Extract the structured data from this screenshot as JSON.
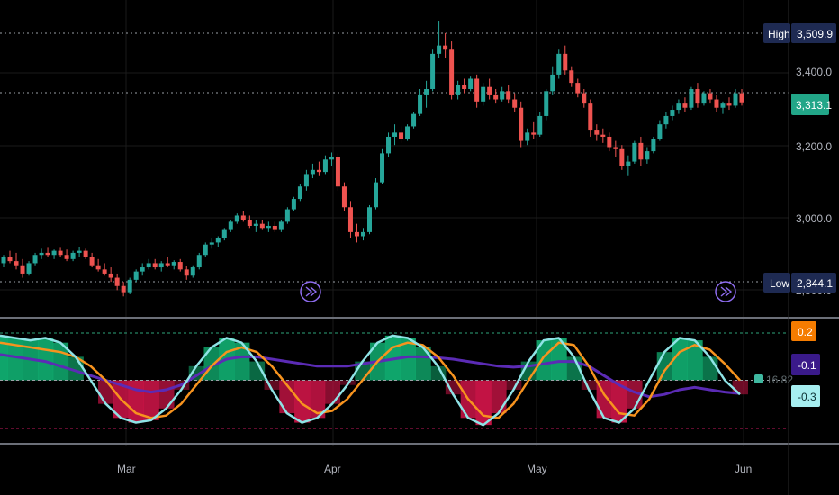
{
  "chart_data": {
    "type": "candlestick",
    "price_axis": {
      "ticks": [
        "3,400.0",
        "3,200.0",
        "3,000.0",
        "2,800.0"
      ],
      "tick_values": [
        3400,
        3200,
        3000,
        2800
      ],
      "ylim": [
        2800,
        3560
      ],
      "high_label": "High",
      "high_value": "3,509.9",
      "low_label": "Low",
      "low_value": "2,844.1",
      "last_value": "3,313.1"
    },
    "time_axis": {
      "labels": [
        "Mar",
        "Apr",
        "May",
        "Jun"
      ]
    },
    "candles": [
      [
        2925,
        2945,
        2915,
        2940
      ],
      [
        2940,
        2955,
        2925,
        2930
      ],
      [
        2930,
        2950,
        2910,
        2920
      ],
      [
        2920,
        2935,
        2890,
        2900
      ],
      [
        2900,
        2930,
        2895,
        2925
      ],
      [
        2925,
        2950,
        2920,
        2945
      ],
      [
        2945,
        2960,
        2935,
        2950
      ],
      [
        2950,
        2962,
        2940,
        2945
      ],
      [
        2945,
        2958,
        2935,
        2955
      ],
      [
        2955,
        2962,
        2940,
        2945
      ],
      [
        2945,
        2958,
        2930,
        2935
      ],
      [
        2935,
        2955,
        2930,
        2950
      ],
      [
        2950,
        2965,
        2940,
        2955
      ],
      [
        2955,
        2960,
        2935,
        2940
      ],
      [
        2940,
        2950,
        2915,
        2920
      ],
      [
        2920,
        2935,
        2905,
        2910
      ],
      [
        2910,
        2925,
        2895,
        2900
      ],
      [
        2900,
        2915,
        2880,
        2890
      ],
      [
        2890,
        2900,
        2860,
        2870
      ],
      [
        2870,
        2880,
        2845,
        2855
      ],
      [
        2855,
        2890,
        2850,
        2885
      ],
      [
        2885,
        2910,
        2880,
        2905
      ],
      [
        2905,
        2925,
        2895,
        2915
      ],
      [
        2915,
        2935,
        2910,
        2925
      ],
      [
        2925,
        2935,
        2910,
        2915
      ],
      [
        2915,
        2930,
        2905,
        2925
      ],
      [
        2925,
        2940,
        2915,
        2920
      ],
      [
        2920,
        2932,
        2910,
        2928
      ],
      [
        2928,
        2935,
        2905,
        2910
      ],
      [
        2910,
        2918,
        2885,
        2895
      ],
      [
        2895,
        2920,
        2890,
        2915
      ],
      [
        2915,
        2950,
        2910,
        2945
      ],
      [
        2945,
        2975,
        2940,
        2970
      ],
      [
        2970,
        2985,
        2960,
        2975
      ],
      [
        2975,
        2990,
        2965,
        2985
      ],
      [
        2985,
        3010,
        2980,
        3005
      ],
      [
        3005,
        3030,
        3000,
        3025
      ],
      [
        3025,
        3045,
        3020,
        3040
      ],
      [
        3040,
        3050,
        3025,
        3030
      ],
      [
        3030,
        3040,
        3010,
        3015
      ],
      [
        3015,
        3030,
        3000,
        3020
      ],
      [
        3020,
        3030,
        3005,
        3010
      ],
      [
        3010,
        3025,
        3000,
        3015
      ],
      [
        3015,
        3025,
        3000,
        3005
      ],
      [
        3005,
        3030,
        3000,
        3025
      ],
      [
        3025,
        3060,
        3020,
        3055
      ],
      [
        3055,
        3085,
        3050,
        3080
      ],
      [
        3080,
        3115,
        3075,
        3110
      ],
      [
        3110,
        3150,
        3100,
        3140
      ],
      [
        3140,
        3165,
        3130,
        3150
      ],
      [
        3150,
        3170,
        3135,
        3145
      ],
      [
        3145,
        3185,
        3140,
        3175
      ],
      [
        3175,
        3192,
        3160,
        3180
      ],
      [
        3180,
        3190,
        3100,
        3110
      ],
      [
        3110,
        3120,
        3050,
        3060
      ],
      [
        3060,
        3075,
        2985,
        3000
      ],
      [
        3000,
        3020,
        2975,
        2990
      ],
      [
        2990,
        3010,
        2980,
        3000
      ],
      [
        3000,
        3065,
        2995,
        3060
      ],
      [
        3060,
        3130,
        3055,
        3120
      ],
      [
        3120,
        3200,
        3115,
        3190
      ],
      [
        3190,
        3240,
        3180,
        3230
      ],
      [
        3230,
        3260,
        3210,
        3240
      ],
      [
        3240,
        3255,
        3215,
        3225
      ],
      [
        3225,
        3260,
        3220,
        3255
      ],
      [
        3255,
        3290,
        3250,
        3285
      ],
      [
        3285,
        3345,
        3280,
        3330
      ],
      [
        3330,
        3365,
        3300,
        3345
      ],
      [
        3345,
        3440,
        3340,
        3430
      ],
      [
        3430,
        3510,
        3420,
        3450
      ],
      [
        3450,
        3480,
        3420,
        3440
      ],
      [
        3440,
        3460,
        3320,
        3330
      ],
      [
        3330,
        3365,
        3320,
        3355
      ],
      [
        3355,
        3370,
        3335,
        3345
      ],
      [
        3345,
        3375,
        3340,
        3370
      ],
      [
        3370,
        3380,
        3300,
        3315
      ],
      [
        3315,
        3360,
        3305,
        3350
      ],
      [
        3350,
        3370,
        3320,
        3330
      ],
      [
        3330,
        3345,
        3310,
        3320
      ],
      [
        3320,
        3350,
        3315,
        3340
      ],
      [
        3340,
        3355,
        3310,
        3320
      ],
      [
        3320,
        3335,
        3290,
        3300
      ],
      [
        3300,
        3315,
        3205,
        3220
      ],
      [
        3220,
        3250,
        3210,
        3240
      ],
      [
        3240,
        3265,
        3225,
        3235
      ],
      [
        3235,
        3290,
        3230,
        3280
      ],
      [
        3280,
        3345,
        3270,
        3340
      ],
      [
        3340,
        3400,
        3330,
        3380
      ],
      [
        3380,
        3440,
        3370,
        3430
      ],
      [
        3430,
        3450,
        3380,
        3390
      ],
      [
        3390,
        3400,
        3350,
        3360
      ],
      [
        3360,
        3370,
        3325,
        3335
      ],
      [
        3335,
        3345,
        3300,
        3310
      ],
      [
        3310,
        3320,
        3230,
        3245
      ],
      [
        3245,
        3260,
        3220,
        3235
      ],
      [
        3235,
        3250,
        3215,
        3230
      ],
      [
        3230,
        3240,
        3195,
        3205
      ],
      [
        3205,
        3220,
        3180,
        3200
      ],
      [
        3200,
        3210,
        3150,
        3160
      ],
      [
        3160,
        3185,
        3135,
        3170
      ],
      [
        3170,
        3220,
        3165,
        3215
      ],
      [
        3215,
        3230,
        3160,
        3175
      ],
      [
        3175,
        3205,
        3165,
        3195
      ],
      [
        3195,
        3230,
        3190,
        3225
      ],
      [
        3225,
        3270,
        3220,
        3260
      ],
      [
        3260,
        3290,
        3250,
        3280
      ],
      [
        3280,
        3305,
        3270,
        3295
      ],
      [
        3295,
        3320,
        3285,
        3310
      ],
      [
        3310,
        3325,
        3290,
        3300
      ],
      [
        3300,
        3350,
        3295,
        3345
      ],
      [
        3345,
        3360,
        3300,
        3310
      ],
      [
        3310,
        3340,
        3305,
        3335
      ],
      [
        3335,
        3345,
        3310,
        3320
      ],
      [
        3320,
        3330,
        3290,
        3300
      ],
      [
        3300,
        3315,
        3285,
        3310
      ],
      [
        3310,
        3325,
        3295,
        3305
      ],
      [
        3305,
        3345,
        3300,
        3335
      ],
      [
        3335,
        3345,
        3305,
        3313
      ]
    ],
    "oscillator": {
      "lines": [
        0.2,
        -0.1,
        -0.3
      ],
      "readout": "16.82",
      "values": {
        "fast": [
          0.95,
          0.9,
          0.85,
          0.9,
          0.8,
          0.5,
          0.0,
          -0.5,
          -0.8,
          -0.9,
          -0.85,
          -0.6,
          -0.2,
          0.3,
          0.7,
          0.9,
          0.8,
          0.4,
          -0.2,
          -0.7,
          -0.9,
          -0.8,
          -0.5,
          -0.1,
          0.4,
          0.8,
          0.95,
          0.9,
          0.7,
          0.3,
          -0.3,
          -0.8,
          -0.95,
          -0.7,
          -0.2,
          0.4,
          0.85,
          0.9,
          0.5,
          -0.2,
          -0.8,
          -0.9,
          -0.6,
          0.0,
          0.6,
          0.9,
          0.85,
          0.5,
          0.0,
          -0.3
        ],
        "slow": [
          0.8,
          0.75,
          0.7,
          0.65,
          0.6,
          0.5,
          0.3,
          0.0,
          -0.4,
          -0.7,
          -0.8,
          -0.75,
          -0.5,
          -0.1,
          0.3,
          0.6,
          0.7,
          0.6,
          0.3,
          -0.1,
          -0.5,
          -0.7,
          -0.65,
          -0.4,
          0.0,
          0.4,
          0.7,
          0.8,
          0.75,
          0.5,
          0.1,
          -0.4,
          -0.75,
          -0.8,
          -0.5,
          0.0,
          0.5,
          0.8,
          0.75,
          0.3,
          -0.3,
          -0.7,
          -0.75,
          -0.4,
          0.2,
          0.6,
          0.75,
          0.65,
          0.35,
          0.0
        ],
        "signal": [
          0.55,
          0.5,
          0.45,
          0.4,
          0.3,
          0.2,
          0.1,
          0.0,
          -0.1,
          -0.2,
          -0.25,
          -0.2,
          -0.1,
          0.1,
          0.3,
          0.45,
          0.5,
          0.5,
          0.45,
          0.4,
          0.35,
          0.3,
          0.3,
          0.3,
          0.35,
          0.4,
          0.45,
          0.5,
          0.5,
          0.48,
          0.45,
          0.4,
          0.35,
          0.3,
          0.28,
          0.3,
          0.35,
          0.4,
          0.4,
          0.3,
          0.1,
          -0.1,
          -0.25,
          -0.35,
          -0.3,
          -0.2,
          -0.15,
          -0.2,
          -0.25,
          -0.28
        ]
      }
    }
  }
}
